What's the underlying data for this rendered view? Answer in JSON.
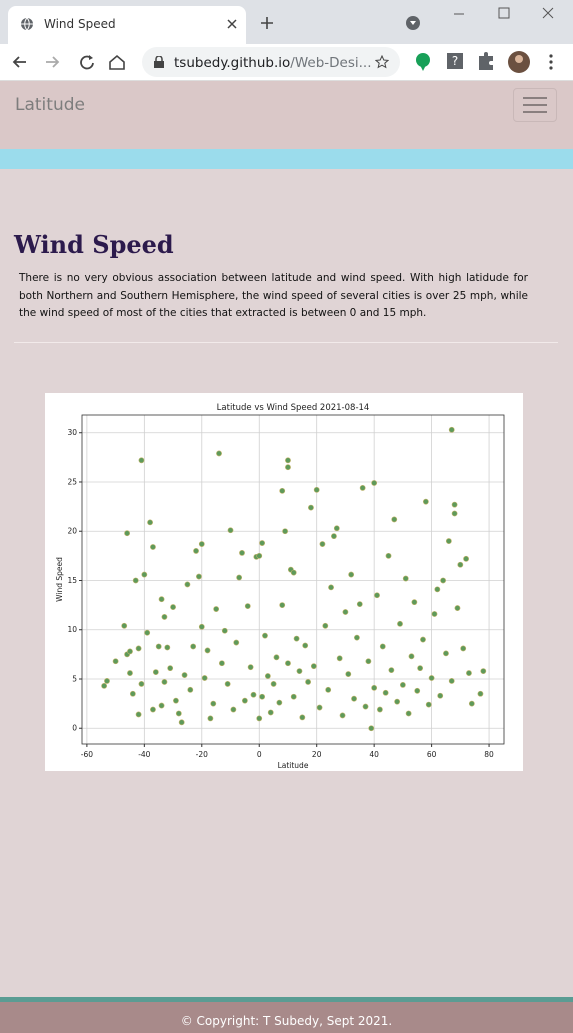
{
  "browser": {
    "tab_title": "Wind Speed",
    "url_host": "tsubedy.github.io",
    "url_path": "/Web-Desi..."
  },
  "navbar": {
    "brand": "Latitude"
  },
  "heading": "Wind Speed",
  "paragraph": "There is no very obvious association between latitude and wind speed. With high latidude for both Northern and Southern Hemisphere, the wind speed of several cities is over 25 mph, while the wind speed of most of the cities that extracted is between 0 and 15 mph.",
  "footer": "© Copyright: T Subedy, Sept 2021.",
  "chart_data": {
    "type": "scatter",
    "title": "Latitude vs Wind Speed 2021-08-14",
    "x_label": "Latitude",
    "y_label": "Wind Speed",
    "xlim": [
      -61.7,
      85.2
    ],
    "ylim": [
      -1.6,
      31.8
    ],
    "xticks": [
      -60,
      -40,
      -20,
      0,
      20,
      40,
      60,
      80
    ],
    "yticks": [
      0,
      5,
      10,
      15,
      20,
      25,
      30
    ],
    "grid": true,
    "color": "#5e9a5a",
    "edge_color": "#c2b36a",
    "x": [
      -54,
      -53,
      -50,
      -47,
      -46,
      -46,
      -45,
      -45,
      -44,
      -43,
      -42,
      -42,
      -41,
      -41,
      -40,
      -39,
      -38,
      -37,
      -37,
      -36,
      -35,
      -34,
      -34,
      -33,
      -33,
      -32,
      -31,
      -30,
      -29,
      -28,
      -27,
      -26,
      -25,
      -24,
      -23,
      -22,
      -21,
      -20,
      -20,
      -19,
      -18,
      -17,
      -16,
      -15,
      -14,
      -13,
      -12,
      -11,
      -10,
      -9,
      -8,
      -7,
      -6,
      -5,
      -4,
      -3,
      -2,
      -1,
      0,
      0,
      1,
      1,
      2,
      3,
      4,
      5,
      6,
      7,
      8,
      8,
      9,
      10,
      10,
      10,
      11,
      12,
      12,
      13,
      14,
      15,
      16,
      17,
      18,
      19,
      20,
      21,
      22,
      23,
      24,
      25,
      26,
      27,
      28,
      29,
      30,
      31,
      32,
      33,
      34,
      35,
      36,
      37,
      38,
      39,
      40,
      40,
      41,
      42,
      43,
      44,
      45,
      46,
      47,
      48,
      49,
      50,
      51,
      52,
      53,
      54,
      55,
      56,
      57,
      58,
      59,
      60,
      61,
      62,
      63,
      64,
      65,
      66,
      67,
      67,
      68,
      68,
      69,
      70,
      71,
      72,
      73,
      74,
      77,
      78
    ],
    "values": [
      4.3,
      4.8,
      6.8,
      10.4,
      19.8,
      7.5,
      7.8,
      5.6,
      3.5,
      15,
      1.4,
      8.1,
      27.2,
      4.5,
      15.6,
      9.7,
      20.9,
      18.4,
      1.9,
      5.7,
      8.3,
      13.1,
      2.3,
      11.3,
      4.7,
      8.2,
      6.1,
      12.3,
      2.8,
      1.5,
      0.6,
      5.4,
      14.6,
      3.9,
      8.3,
      18,
      15.4,
      18.7,
      10.3,
      5.1,
      7.9,
      1,
      2.5,
      12.1,
      27.9,
      6.6,
      9.9,
      4.5,
      20.1,
      1.9,
      8.7,
      15.3,
      17.8,
      2.8,
      12.4,
      6.2,
      3.4,
      17.4,
      17.5,
      1,
      3.2,
      18.8,
      9.4,
      5.3,
      1.6,
      4.5,
      7.2,
      2.6,
      24.1,
      12.5,
      20,
      27.2,
      26.5,
      6.6,
      16.1,
      15.8,
      3.2,
      9.1,
      5.8,
      1.1,
      8.4,
      4.7,
      22.4,
      6.3,
      24.2,
      2.1,
      18.7,
      10.4,
      3.9,
      14.3,
      19.5,
      20.3,
      7.1,
      1.3,
      11.8,
      5.5,
      15.6,
      3,
      9.2,
      12.6,
      24.4,
      2.2,
      6.8,
      0,
      24.9,
      4.1,
      13.5,
      1.9,
      8.3,
      3.6,
      17.5,
      5.9,
      21.2,
      2.7,
      10.6,
      4.4,
      15.2,
      1.5,
      7.3,
      12.8,
      3.8,
      6.1,
      9,
      23,
      2.4,
      5.1,
      11.6,
      14.1,
      3.3,
      15,
      7.6,
      19,
      30.3,
      4.8,
      22.7,
      21.8,
      12.2,
      16.6,
      8.1,
      17.2,
      5.6,
      2.5,
      3.5,
      5.8
    ]
  }
}
